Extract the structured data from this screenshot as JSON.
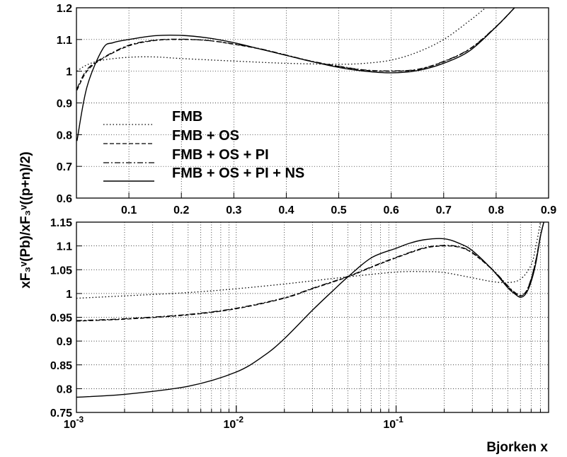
{
  "chart_data": {
    "ylabel": "xF₃ᵛ(Pb)/xF₃ᵛ((p+n)/2)",
    "xlabel": "Bjorken x",
    "series_styles": [
      {
        "name": "FMB",
        "dash": "1.5,3"
      },
      {
        "name": "FMB + OS",
        "dash": "6,3"
      },
      {
        "name": "FMB + OS + PI",
        "dash": "8,3,2,3"
      },
      {
        "name": "FMB + OS + PI + NS",
        "dash": "none"
      }
    ],
    "panels": [
      {
        "type": "line",
        "xscale": "linear",
        "xlim": [
          0,
          0.9
        ],
        "ylim": [
          0.6,
          1.2
        ],
        "grid": true,
        "legend": "lower-left",
        "xticks": [
          0.1,
          0.2,
          0.3,
          0.4,
          0.5,
          0.6,
          0.7,
          0.8,
          0.9
        ],
        "xtick_labels": [
          "0.1",
          "0.2",
          "0.3",
          "0.4",
          "0.5",
          "0.6",
          "0.7",
          "0.8",
          "0.9"
        ],
        "yticks": [
          0.6,
          0.7,
          0.8,
          0.9,
          1.0,
          1.1,
          1.2
        ],
        "ytick_labels": [
          "0.6",
          "0.7",
          "0.8",
          "0.9",
          "1",
          "1.1",
          "1.2"
        ],
        "series": [
          {
            "name": "FMB",
            "x": [
              0.001,
              0.02,
              0.05,
              0.1,
              0.15,
              0.2,
              0.3,
              0.4,
              0.5,
              0.55,
              0.6,
              0.65,
              0.7,
              0.75,
              0.78
            ],
            "y": [
              1.0,
              1.02,
              1.035,
              1.044,
              1.045,
              1.04,
              1.032,
              1.025,
              1.022,
              1.025,
              1.035,
              1.06,
              1.1,
              1.16,
              1.2
            ]
          },
          {
            "name": "FMB + OS",
            "x": [
              0.001,
              0.02,
              0.05,
              0.1,
              0.15,
              0.2,
              0.25,
              0.3,
              0.35,
              0.4,
              0.45,
              0.5,
              0.55,
              0.6,
              0.65,
              0.7,
              0.75,
              0.8,
              0.835
            ],
            "y": [
              0.94,
              1.0,
              1.04,
              1.08,
              1.097,
              1.1,
              1.097,
              1.085,
              1.07,
              1.05,
              1.03,
              1.015,
              1.003,
              1.0,
              1.005,
              1.03,
              1.07,
              1.14,
              1.2
            ]
          },
          {
            "name": "FMB + OS + PI",
            "x": [
              0.001,
              0.02,
              0.05,
              0.1,
              0.15,
              0.2,
              0.25,
              0.3,
              0.35,
              0.4,
              0.45,
              0.5,
              0.55,
              0.6,
              0.65,
              0.7,
              0.75,
              0.8,
              0.835
            ],
            "y": [
              0.945,
              1.005,
              1.042,
              1.082,
              1.098,
              1.101,
              1.097,
              1.086,
              1.071,
              1.051,
              1.031,
              1.016,
              1.004,
              1.001,
              1.006,
              1.031,
              1.071,
              1.141,
              1.2
            ]
          },
          {
            "name": "FMB + OS + PI + NS",
            "x": [
              0.001,
              0.02,
              0.05,
              0.07,
              0.1,
              0.15,
              0.2,
              0.25,
              0.3,
              0.35,
              0.4,
              0.45,
              0.5,
              0.55,
              0.6,
              0.65,
              0.7,
              0.75,
              0.8,
              0.835
            ],
            "y": [
              0.78,
              0.95,
              1.07,
              1.09,
              1.1,
              1.112,
              1.113,
              1.105,
              1.09,
              1.07,
              1.05,
              1.03,
              1.012,
              1.0,
              0.995,
              1.002,
              1.025,
              1.065,
              1.14,
              1.2
            ]
          }
        ]
      },
      {
        "type": "line",
        "xscale": "log",
        "xlim": [
          0.001,
          0.9
        ],
        "ylim": [
          0.75,
          1.15
        ],
        "grid": true,
        "xticks": [
          0.001,
          0.01,
          0.1
        ],
        "xtick_labels": [
          {
            "base": "10",
            "exp": "-3"
          },
          {
            "base": "10",
            "exp": "-2"
          },
          {
            "base": "10",
            "exp": "-1"
          }
        ],
        "yticks": [
          0.75,
          0.8,
          0.85,
          0.9,
          0.95,
          1.0,
          1.05,
          1.1,
          1.15
        ],
        "ytick_labels": [
          "0.75",
          "0.8",
          "0.85",
          "0.9",
          "0.95",
          "1",
          "1.05",
          "1.1",
          "1.15"
        ],
        "series": [
          {
            "name": "FMB",
            "x": [
              0.001,
              0.002,
              0.005,
              0.01,
              0.02,
              0.05,
              0.1,
              0.15,
              0.2,
              0.3,
              0.4,
              0.5,
              0.6,
              0.7,
              0.75,
              0.8
            ],
            "y": [
              0.99,
              0.995,
              1.002,
              1.01,
              1.02,
              1.035,
              1.045,
              1.046,
              1.044,
              1.033,
              1.025,
              1.023,
              1.03,
              1.06,
              1.1,
              1.15
            ]
          },
          {
            "name": "FMB + OS",
            "x": [
              0.001,
              0.002,
              0.005,
              0.01,
              0.02,
              0.03,
              0.05,
              0.07,
              0.1,
              0.15,
              0.2,
              0.25,
              0.3,
              0.4,
              0.5,
              0.55,
              0.6,
              0.65,
              0.7,
              0.75,
              0.8,
              0.84
            ],
            "y": [
              0.942,
              0.946,
              0.955,
              0.968,
              0.99,
              1.01,
              1.035,
              1.055,
              1.075,
              1.095,
              1.1,
              1.097,
              1.085,
              1.05,
              1.015,
              1.002,
              0.995,
              1.003,
              1.03,
              1.07,
              1.12,
              1.15
            ]
          },
          {
            "name": "FMB + OS + PI",
            "x": [
              0.001,
              0.002,
              0.005,
              0.01,
              0.02,
              0.03,
              0.05,
              0.07,
              0.1,
              0.15,
              0.2,
              0.25,
              0.3,
              0.4,
              0.5,
              0.55,
              0.6,
              0.65,
              0.7,
              0.75,
              0.8,
              0.84
            ],
            "y": [
              0.943,
              0.947,
              0.956,
              0.969,
              0.991,
              1.011,
              1.036,
              1.056,
              1.076,
              1.096,
              1.101,
              1.098,
              1.086,
              1.051,
              1.016,
              1.003,
              0.996,
              1.004,
              1.031,
              1.071,
              1.121,
              1.15
            ]
          },
          {
            "name": "FMB + OS + PI + NS",
            "x": [
              0.001,
              0.002,
              0.005,
              0.01,
              0.015,
              0.02,
              0.03,
              0.04,
              0.05,
              0.07,
              0.1,
              0.12,
              0.15,
              0.2,
              0.25,
              0.3,
              0.4,
              0.5,
              0.55,
              0.6,
              0.65,
              0.7,
              0.75,
              0.8,
              0.84
            ],
            "y": [
              0.782,
              0.788,
              0.805,
              0.835,
              0.87,
              0.905,
              0.965,
              1.005,
              1.035,
              1.075,
              1.095,
              1.105,
              1.113,
              1.115,
              1.105,
              1.09,
              1.05,
              1.012,
              1.0,
              0.992,
              1.0,
              1.025,
              1.065,
              1.12,
              1.15
            ]
          }
        ]
      }
    ]
  }
}
